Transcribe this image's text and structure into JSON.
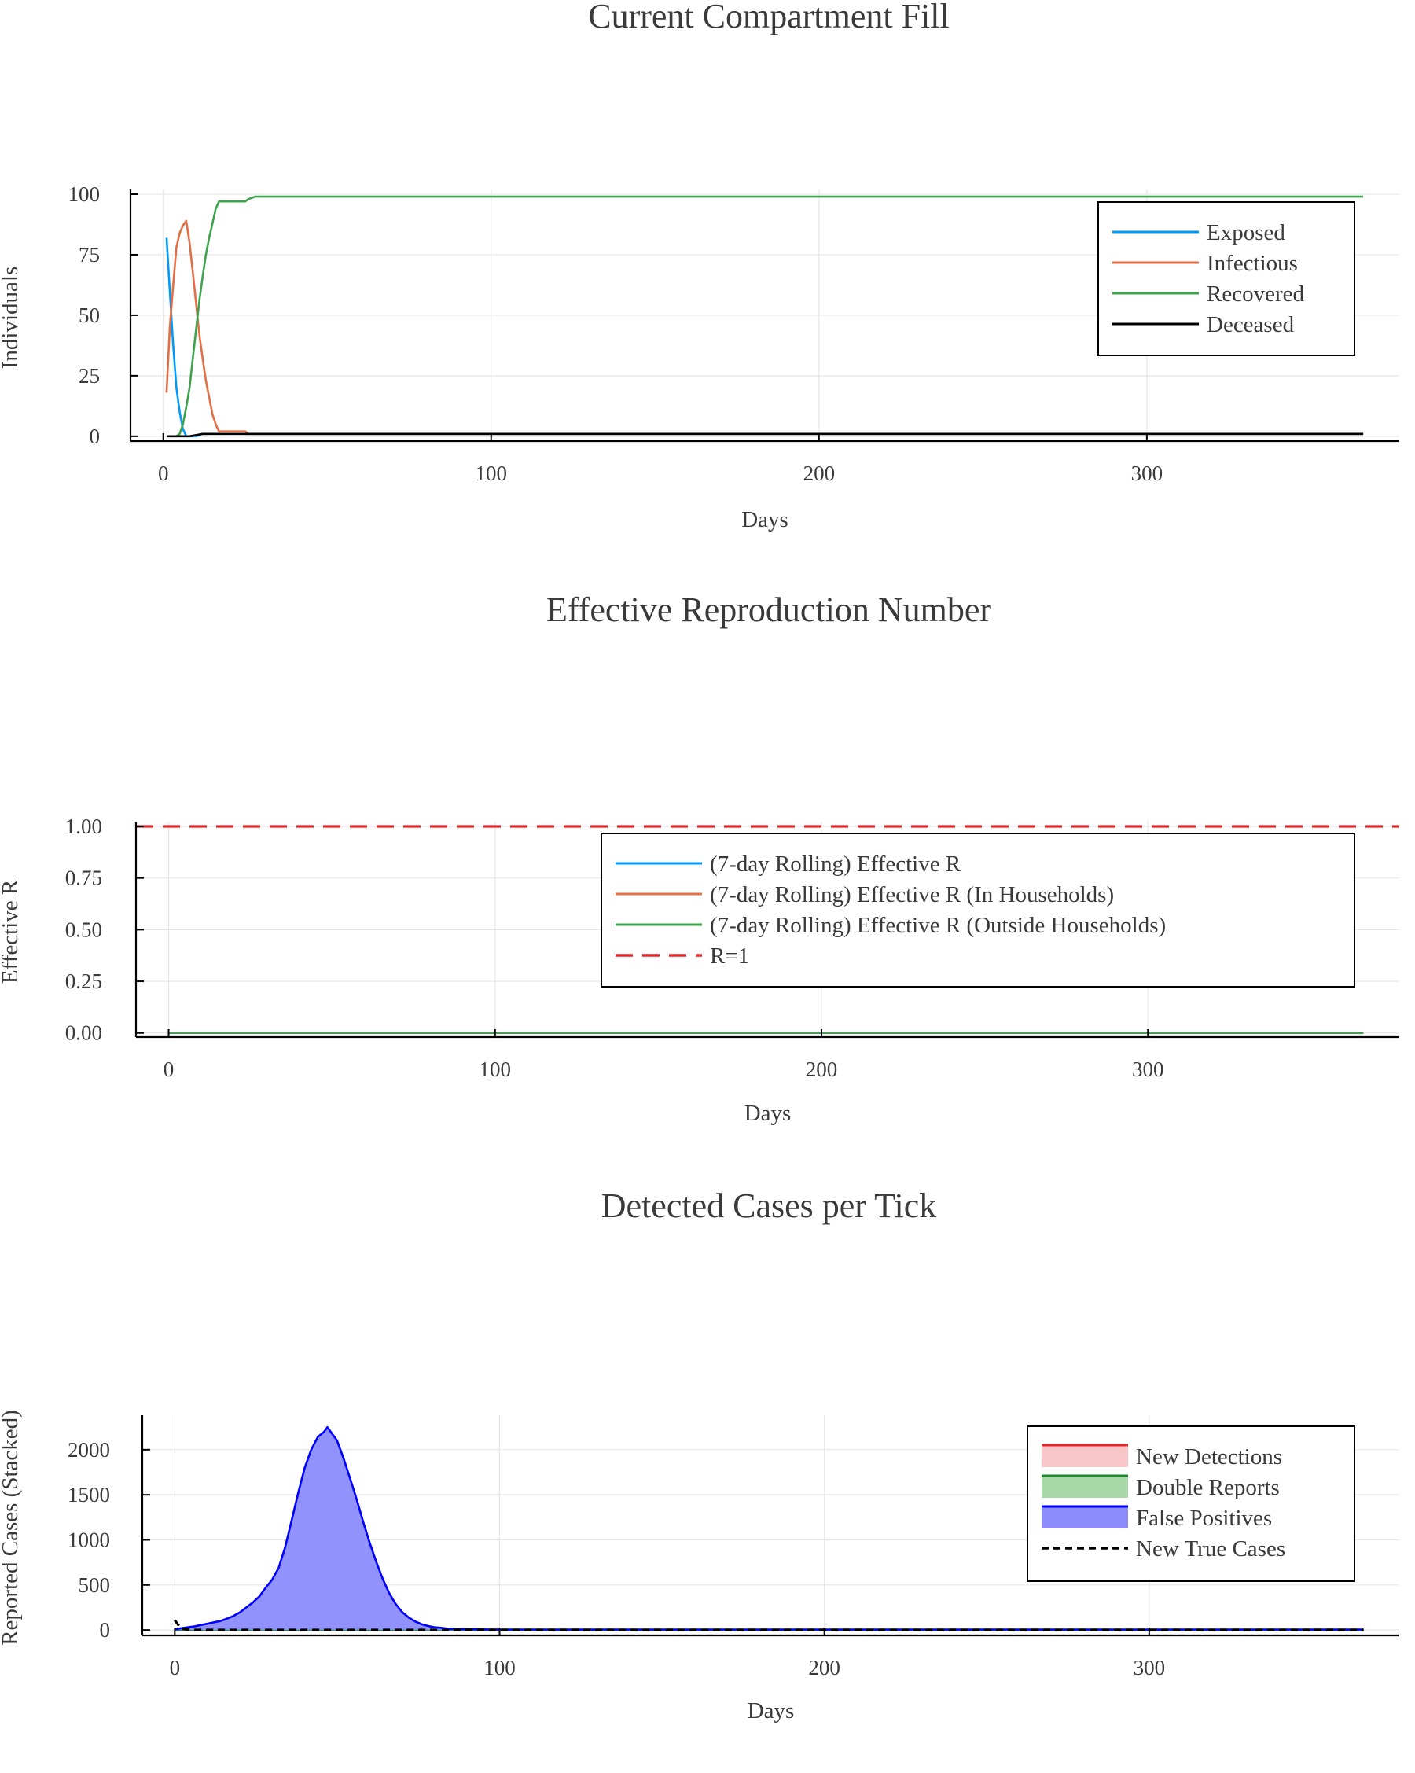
{
  "chart_data": [
    {
      "type": "line",
      "title": "Current Compartment Fill",
      "xlabel": "Days",
      "ylabel": "Individuals",
      "xlim": [
        -10,
        377
      ],
      "ylim": [
        -2,
        100
      ],
      "xticks": [
        0,
        100,
        200,
        300
      ],
      "yticks": [
        0,
        25,
        50,
        75,
        100
      ],
      "grid": true,
      "legend_position": "top-right",
      "series": [
        {
          "name": "Exposed",
          "color": "#009AFA",
          "x": [
            1,
            2,
            3,
            4,
            5,
            6,
            7,
            10,
            12,
            25,
            366
          ],
          "y": [
            82,
            60,
            38,
            20,
            10,
            3,
            0,
            0,
            1,
            1,
            1
          ]
        },
        {
          "name": "Infectious",
          "color": "#E26F46",
          "x": [
            1,
            2,
            3,
            4,
            5,
            6,
            7,
            8,
            9,
            10,
            11,
            12,
            13,
            14,
            15,
            16,
            17,
            18,
            20,
            25,
            26,
            366
          ],
          "y": [
            18,
            45,
            62,
            78,
            84,
            87,
            89,
            80,
            68,
            55,
            42,
            32,
            23,
            16,
            9,
            5,
            2,
            2,
            2,
            2,
            1,
            1
          ]
        },
        {
          "name": "Recovered",
          "color": "#3DA44D",
          "x": [
            1,
            4,
            5,
            6,
            7,
            8,
            9,
            10,
            11,
            12,
            13,
            14,
            15,
            16,
            17,
            18,
            20,
            25,
            26,
            28,
            366
          ],
          "y": [
            0,
            0,
            1,
            5,
            12,
            20,
            32,
            44,
            56,
            66,
            75,
            82,
            88,
            94,
            97,
            97,
            97,
            97,
            98,
            99,
            99
          ]
        },
        {
          "name": "Deceased",
          "color": "#000000",
          "x": [
            1,
            2,
            3,
            8,
            12,
            366
          ],
          "y": [
            0,
            0,
            0,
            0,
            1,
            1
          ]
        }
      ]
    },
    {
      "type": "line",
      "title": "Effective Reproduction Number",
      "xlabel": "Days",
      "ylabel": "Effective R",
      "xlim": [
        -10,
        377
      ],
      "ylim": [
        -0.02,
        1.0
      ],
      "xticks": [
        0,
        100,
        200,
        300
      ],
      "yticks": [
        0.0,
        0.25,
        0.5,
        0.75,
        1.0
      ],
      "ytick_labels": [
        "0.00",
        "0.25",
        "0.50",
        "0.75",
        "1.00"
      ],
      "grid": true,
      "legend_position": "top-right",
      "series": [
        {
          "name": "(7-day Rolling) Effective R",
          "color": "#009AFA",
          "x": [
            0,
            366
          ],
          "y": [
            0,
            0
          ]
        },
        {
          "name": "(7-day Rolling) Effective R (In Households)",
          "color": "#E26F46",
          "x": [
            0,
            366
          ],
          "y": [
            0,
            0
          ]
        },
        {
          "name": "(7-day Rolling) Effective R (Outside Households)",
          "color": "#3DA44D",
          "x": [
            0,
            366
          ],
          "y": [
            0,
            0
          ]
        },
        {
          "name": "R=1",
          "color": "#E8262A",
          "dashed": true,
          "x": [
            -10,
            377
          ],
          "y": [
            1,
            1
          ]
        }
      ]
    },
    {
      "type": "area",
      "title": "Detected Cases per Tick",
      "xlabel": "Days",
      "ylabel": "Reported Cases (Stacked)",
      "xlim": [
        -10,
        377
      ],
      "ylim": [
        -60,
        2330
      ],
      "xticks": [
        0,
        100,
        200,
        300
      ],
      "yticks": [
        0,
        500,
        1000,
        1500,
        2000
      ],
      "grid": true,
      "legend_position": "top-right",
      "series": [
        {
          "name": "New Detections",
          "color": "#E8262A",
          "fill": "#F8C6C6",
          "x": [
            0,
            366
          ],
          "y": [
            0,
            0
          ]
        },
        {
          "name": "Double Reports",
          "color": "#1E8A2E",
          "fill": "#A8D8A8",
          "x": [
            0,
            366
          ],
          "y": [
            0,
            0
          ]
        },
        {
          "name": "False Positives",
          "color": "#0000FF",
          "fill": "#8C8CFC",
          "x": [
            0,
            2,
            4,
            6,
            8,
            10,
            12,
            14,
            16,
            18,
            20,
            22,
            24,
            26,
            28,
            30,
            32,
            34,
            36,
            38,
            40,
            42,
            44,
            46,
            47,
            48,
            50,
            52,
            54,
            56,
            58,
            60,
            62,
            64,
            66,
            68,
            70,
            72,
            74,
            76,
            78,
            80,
            82,
            84,
            86,
            90,
            100,
            366
          ],
          "y": [
            5,
            20,
            30,
            40,
            55,
            70,
            85,
            100,
            125,
            155,
            195,
            250,
            305,
            370,
            470,
            560,
            690,
            920,
            1220,
            1520,
            1800,
            2000,
            2140,
            2200,
            2250,
            2200,
            2100,
            1900,
            1680,
            1450,
            1200,
            970,
            760,
            570,
            410,
            290,
            200,
            140,
            95,
            65,
            45,
            30,
            25,
            15,
            10,
            8,
            5,
            5
          ]
        },
        {
          "name": "New True Cases",
          "color": "#000000",
          "dashed": true,
          "x": [
            0,
            1,
            2,
            3,
            4,
            5,
            10,
            366
          ],
          "y": [
            110,
            60,
            20,
            10,
            6,
            2,
            1,
            1
          ]
        }
      ]
    }
  ]
}
